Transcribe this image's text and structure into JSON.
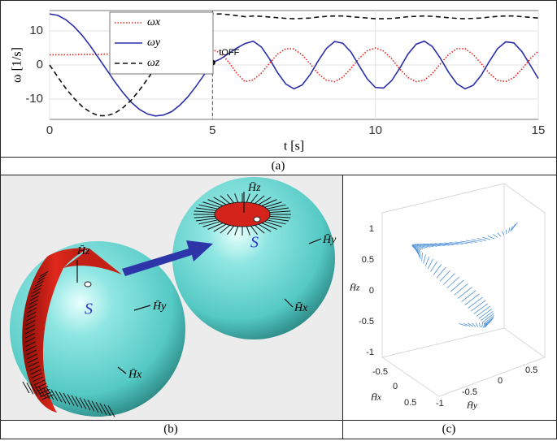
{
  "chart_data": {
    "type": "line",
    "x_label": "t [s]",
    "y_label": "ω [1/s]",
    "x": [
      0,
      0.25,
      0.5,
      0.75,
      1,
      1.25,
      1.5,
      1.75,
      2,
      2.25,
      2.5,
      2.75,
      3,
      3.25,
      3.5,
      3.75,
      4,
      4.25,
      4.5,
      4.75,
      5,
      5.25,
      5.5,
      5.75,
      6,
      6.25,
      6.5,
      6.75,
      7,
      7.25,
      7.5,
      7.75,
      8,
      8.25,
      8.5,
      8.75,
      9,
      9.25,
      9.5,
      9.75,
      10,
      10.25,
      10.5,
      10.75,
      11,
      11.25,
      11.5,
      11.75,
      12,
      12.25,
      12.5,
      12.75,
      13,
      13.25,
      13.5,
      13.75,
      14,
      14.25,
      14.5,
      14.75,
      15
    ],
    "series": [
      {
        "name": "ωx",
        "color": "#e8211a",
        "line_style": "dotted",
        "values": [
          3,
          3,
          3,
          3,
          3.1,
          3.1,
          3.1,
          3.2,
          3.2,
          3.3,
          3.4,
          3.5,
          3.5,
          3.6,
          3.7,
          3.8,
          4,
          4.1,
          4.2,
          4.4,
          4.5,
          3.5,
          0.8,
          -2.5,
          -4.9,
          -4.4,
          -2.4,
          0.5,
          3.2,
          4.8,
          4.7,
          3.0,
          0.3,
          -2.6,
          -4.5,
          -4.9,
          -3.6,
          -1.0,
          1.9,
          4.2,
          5.0,
          4.1,
          1.8,
          -1.2,
          -3.7,
          -4.9,
          -4.5,
          -2.5,
          0.4,
          3.1,
          4.8,
          4.8,
          3.1,
          0.4,
          -2.5,
          -4.5,
          -4.9,
          -3.7,
          -1.2,
          1.8,
          4.1
        ]
      },
      {
        "name": "ωy",
        "color": "#2b2fa8",
        "line_style": "solid",
        "values": [
          15,
          14.6,
          13.3,
          11.3,
          8.7,
          5.6,
          2.1,
          -1.4,
          -4.9,
          -8.1,
          -10.9,
          -13,
          -14.4,
          -15,
          -14.7,
          -13.7,
          -11.8,
          -9.3,
          -6.2,
          -2.8,
          0.7,
          1.8,
          3.4,
          5.0,
          6.3,
          7.0,
          5.3,
          1.8,
          -2.3,
          -5.6,
          -7.0,
          -5.9,
          -2.8,
          1.3,
          4.9,
          6.9,
          6.4,
          3.8,
          -0.2,
          -4.1,
          -6.6,
          -6.8,
          -4.6,
          -0.9,
          3.2,
          6.1,
          7.0,
          5.4,
          1.9,
          -2.2,
          -5.5,
          -7.0,
          -6.0,
          -3.0,
          1.1,
          4.8,
          6.8,
          6.5,
          3.9,
          0,
          -4.0
        ]
      },
      {
        "name": "ωz",
        "color": "#111111",
        "line_style": "dashed",
        "values": [
          0,
          -3.5,
          -6.9,
          -9.8,
          -12.2,
          -13.9,
          -14.9,
          -14.9,
          -14.2,
          -12.6,
          -10.4,
          -7.5,
          -4.2,
          -0.7,
          2.8,
          6.2,
          9.3,
          11.8,
          13.7,
          14.7,
          15,
          15,
          14.8,
          14.5,
          14.2,
          14.4,
          14.3,
          14.1,
          13.9,
          13.7,
          13.6,
          13.7,
          13.8,
          14.1,
          14.3,
          14.4,
          14.4,
          14.2,
          14,
          13.8,
          13.6,
          13.6,
          13.7,
          13.9,
          14.2,
          14.3,
          14.4,
          14.3,
          14.1,
          13.9,
          13.7,
          13.6,
          13.7,
          13.8,
          14.1,
          14.3,
          14.4,
          14.4,
          14.2,
          14,
          13.8
        ]
      }
    ],
    "xlim": [
      0,
      15
    ],
    "xticks": [
      0,
      5,
      10,
      15
    ],
    "ylim": [
      -16,
      16
    ],
    "yticks": [
      -10,
      0,
      10
    ],
    "grid": true,
    "legend": "upper left",
    "annotation": {
      "text": "tOFF",
      "x": 5,
      "y": 0.7
    }
  },
  "panel_b": {
    "left_sphere": {
      "z": "H̄z",
      "y": "H̄y",
      "x": "H̄x",
      "s": "S"
    },
    "right_sphere": {
      "z": "H̄z",
      "y": "H̄y",
      "x": "H̄x",
      "s": "S"
    }
  },
  "panel_c": {
    "z_label": "H̄z",
    "x_label": "H̄x",
    "y_label": "H̄y",
    "z_ticks": [
      1,
      0.5,
      0,
      -0.5,
      -1
    ],
    "x_ticks": [
      -0.5,
      0,
      0.5
    ],
    "y_ticks": [
      -1,
      -0.5,
      0,
      0.5
    ]
  },
  "captions": [
    "(a)",
    "(b)",
    "(c)"
  ]
}
